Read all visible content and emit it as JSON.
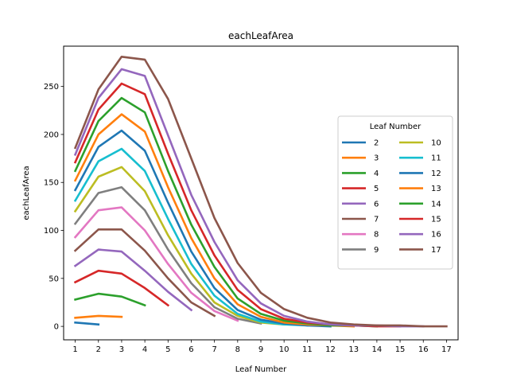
{
  "chart_data": {
    "type": "line",
    "title": "eachLeafArea",
    "xlabel": "Leaf Number",
    "ylabel": "eachLeafArea",
    "xlim": [
      0.5,
      17.5
    ],
    "ylim": [
      -14,
      292
    ],
    "xticks": [
      1,
      2,
      3,
      4,
      5,
      6,
      7,
      8,
      9,
      10,
      11,
      12,
      13,
      14,
      15,
      16,
      17
    ],
    "yticks": [
      0,
      50,
      100,
      150,
      200,
      250
    ],
    "grid": false,
    "legend": {
      "title": "Leaf Number",
      "placement": "center-right",
      "columns": 2
    },
    "series": [
      {
        "name": "2",
        "color": "#1f77b4",
        "x": [
          1,
          2
        ],
        "y": [
          4,
          2
        ]
      },
      {
        "name": "3",
        "color": "#ff7f0e",
        "x": [
          1,
          2,
          3
        ],
        "y": [
          9,
          11,
          10
        ]
      },
      {
        "name": "4",
        "color": "#2ca02c",
        "x": [
          1,
          2,
          3,
          4
        ],
        "y": [
          28,
          34,
          31,
          22
        ]
      },
      {
        "name": "5",
        "color": "#d62728",
        "x": [
          1,
          2,
          3,
          4,
          5
        ],
        "y": [
          46,
          58,
          55,
          40,
          22
        ]
      },
      {
        "name": "6",
        "color": "#9467bd",
        "x": [
          1,
          2,
          3,
          4,
          5,
          6
        ],
        "y": [
          63,
          80,
          78,
          58,
          36,
          17
        ]
      },
      {
        "name": "7",
        "color": "#8c564b",
        "x": [
          1,
          2,
          3,
          4,
          5,
          6,
          7
        ],
        "y": [
          79,
          101,
          101,
          79,
          50,
          25,
          11
        ]
      },
      {
        "name": "8",
        "color": "#e377c2",
        "x": [
          1,
          2,
          3,
          4,
          5,
          6,
          7,
          8
        ],
        "y": [
          93,
          121,
          124,
          100,
          65,
          35,
          16,
          6
        ]
      },
      {
        "name": "9",
        "color": "#7f7f7f",
        "x": [
          1,
          2,
          3,
          4,
          5,
          6,
          7,
          8,
          9
        ],
        "y": [
          107,
          139,
          145,
          121,
          80,
          45,
          20,
          8,
          3
        ]
      },
      {
        "name": "10",
        "color": "#bcbd22",
        "x": [
          1,
          2,
          3,
          4,
          5,
          6,
          7,
          8,
          9,
          10
        ],
        "y": [
          120,
          156,
          166,
          141,
          95,
          55,
          25,
          11,
          4,
          2
        ]
      },
      {
        "name": "11",
        "color": "#17becf",
        "x": [
          1,
          2,
          3,
          4,
          5,
          6,
          7,
          8,
          9,
          10,
          11
        ],
        "y": [
          131,
          172,
          185,
          162,
          112,
          65,
          32,
          13,
          5,
          2,
          1
        ]
      },
      {
        "name": "12",
        "color": "#1f77b4",
        "x": [
          1,
          2,
          3,
          4,
          5,
          6,
          7,
          8,
          9,
          10,
          11,
          12
        ],
        "y": [
          142,
          187,
          204,
          183,
          129,
          78,
          40,
          17,
          7,
          3,
          1,
          0
        ]
      },
      {
        "name": "13",
        "color": "#ff7f0e",
        "x": [
          1,
          2,
          3,
          4,
          5,
          6,
          7,
          8,
          9,
          10,
          11,
          12,
          13
        ],
        "y": [
          152,
          200,
          221,
          203,
          145,
          92,
          50,
          23,
          10,
          4,
          2,
          1,
          0
        ]
      },
      {
        "name": "14",
        "color": "#2ca02c",
        "x": [
          1,
          2,
          3,
          4,
          5,
          6,
          7,
          8,
          9,
          10,
          11,
          12,
          13,
          14
        ],
        "y": [
          162,
          214,
          238,
          223,
          162,
          106,
          62,
          29,
          13,
          6,
          3,
          1,
          1,
          0
        ]
      },
      {
        "name": "15",
        "color": "#d62728",
        "x": [
          1,
          2,
          3,
          4,
          5,
          6,
          7,
          8,
          9,
          10,
          11,
          12,
          13,
          14,
          15
        ],
        "y": [
          171,
          226,
          253,
          242,
          180,
          121,
          74,
          38,
          18,
          8,
          4,
          2,
          1,
          0,
          0
        ]
      },
      {
        "name": "16",
        "color": "#9467bd",
        "x": [
          1,
          2,
          3,
          4,
          5,
          6,
          7,
          8,
          9,
          10,
          11,
          12,
          13,
          14,
          15,
          16
        ],
        "y": [
          179,
          238,
          268,
          261,
          199,
          137,
          88,
          48,
          24,
          11,
          5,
          2,
          1,
          1,
          0,
          0
        ]
      },
      {
        "name": "17",
        "color": "#8c564b",
        "x": [
          1,
          2,
          3,
          4,
          5,
          6,
          7,
          8,
          9,
          10,
          11,
          12,
          13,
          14,
          15,
          16,
          17
        ],
        "y": [
          186,
          247,
          281,
          278,
          237,
          175,
          113,
          66,
          35,
          18,
          9,
          4,
          2,
          1,
          1,
          0,
          0
        ]
      }
    ]
  }
}
